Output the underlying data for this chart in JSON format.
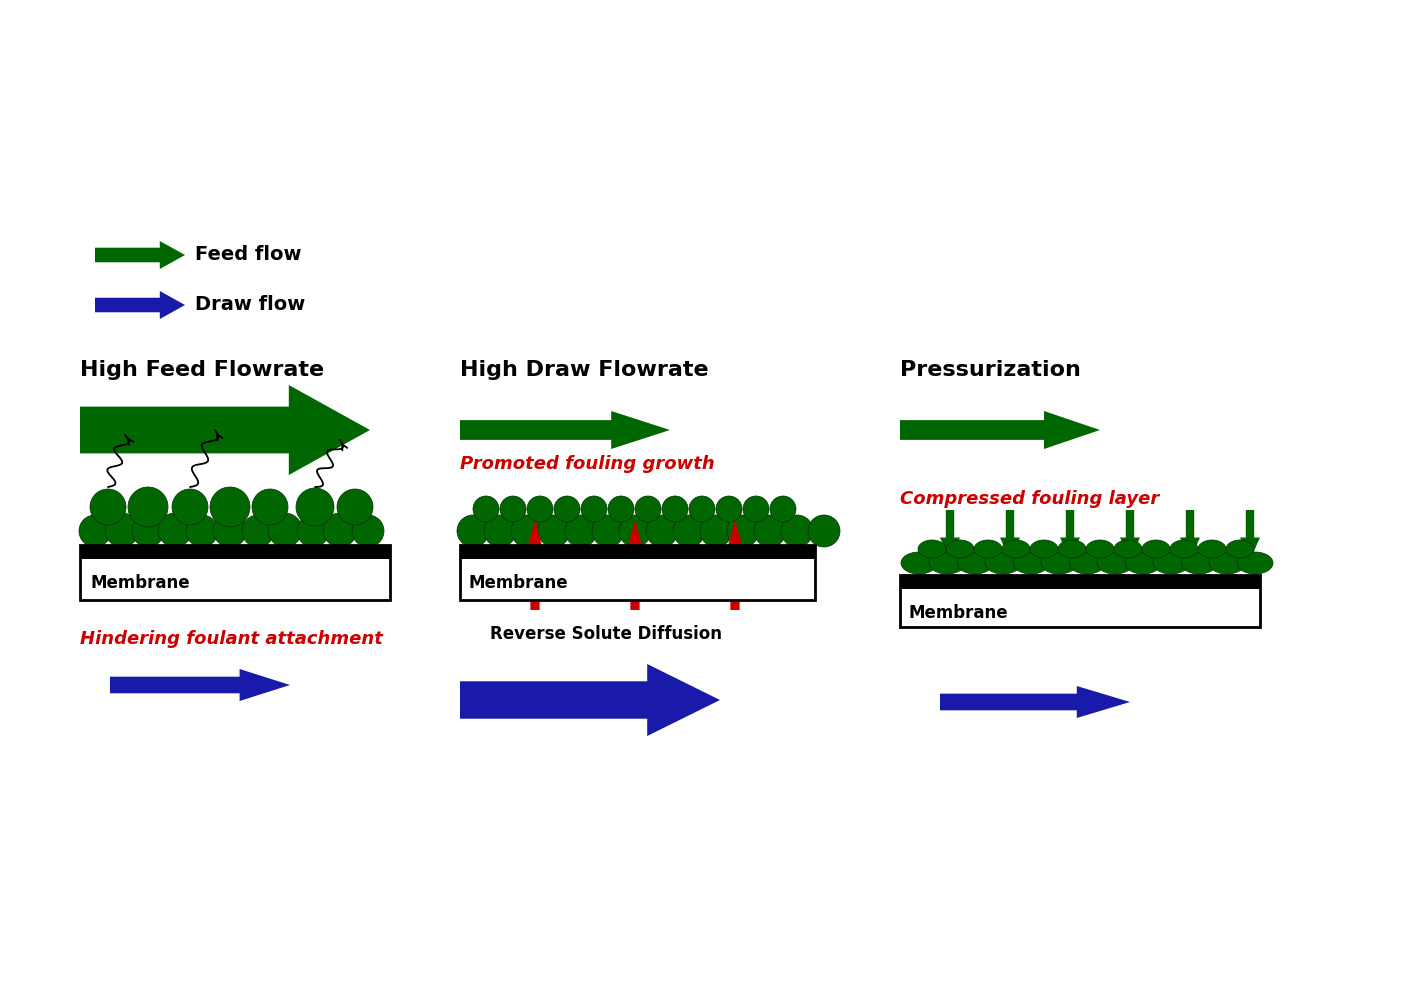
{
  "bg_color": "#ffffff",
  "green_color": "#006600",
  "blue_color": "#1a1aaa",
  "red_color": "#cc0000",
  "black_color": "#000000",
  "legend_feed_text": "Feed flow",
  "legend_draw_text": "Draw flow",
  "panel1_title": "High Feed Flowrate",
  "panel2_title": "High Draw Flowrate",
  "panel3_title": "Pressurization",
  "panel1_annotation": "Hindering foulant attachment",
  "panel2_annotation1": "Promoted fouling growth",
  "panel2_annotation2": "Reverse Solute Diffusion",
  "panel3_annotation": "Compressed fouling layer",
  "membrane_label": "Membrane",
  "fig_w": 14.03,
  "fig_h": 9.92,
  "dpi": 100
}
